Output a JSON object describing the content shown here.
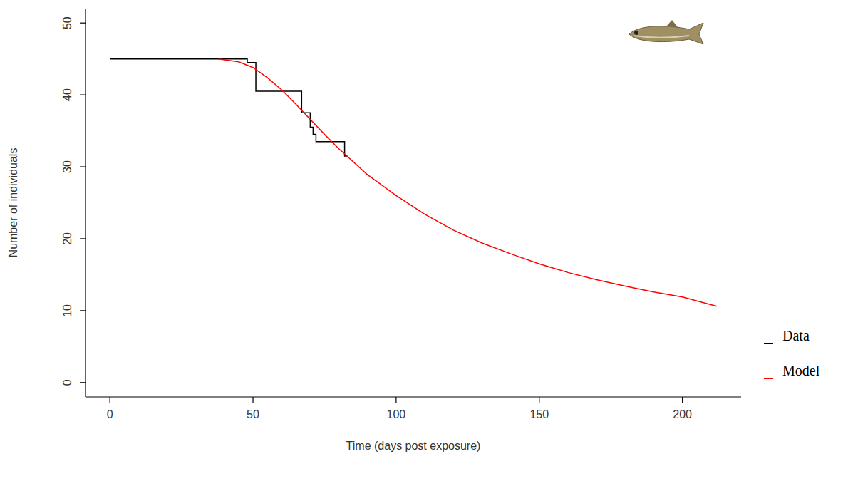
{
  "chart_data": {
    "type": "line",
    "x_label": "Time (days post exposure)",
    "y_label": "Number of individuals",
    "xlim": [
      -8.5,
      220.5
    ],
    "xticks": [
      0,
      50,
      100,
      150,
      200
    ],
    "ylim": [
      -2,
      52
    ],
    "yticks": [
      0,
      10,
      20,
      30,
      40,
      50
    ],
    "grid": false,
    "legend": "right",
    "series": [
      {
        "name": "Data",
        "color": "#000000",
        "line_style": "solid",
        "x": [
          0,
          48,
          48,
          51,
          51,
          67,
          67,
          70,
          70,
          71,
          71,
          72,
          72,
          82,
          82,
          83
        ],
        "values": [
          45,
          45,
          44.5,
          44.5,
          40.5,
          40.5,
          37.5,
          37.5,
          35.5,
          35.5,
          34.5,
          34.5,
          33.5,
          33.5,
          31.5,
          31.5
        ]
      },
      {
        "name": "Model",
        "color": "#ff0000",
        "line_style": "solid",
        "x": [
          38,
          45,
          50,
          55,
          60,
          65,
          70,
          75,
          80,
          90,
          100,
          110,
          120,
          130,
          140,
          150,
          160,
          170,
          180,
          190,
          200,
          212
        ],
        "values": [
          45,
          44.6,
          43.8,
          42.4,
          40.7,
          38.7,
          36.6,
          34.5,
          32.5,
          28.9,
          26,
          23.4,
          21.2,
          19.4,
          17.9,
          16.5,
          15.3,
          14.3,
          13.4,
          12.6,
          11.9,
          10.6
        ]
      }
    ]
  }
}
